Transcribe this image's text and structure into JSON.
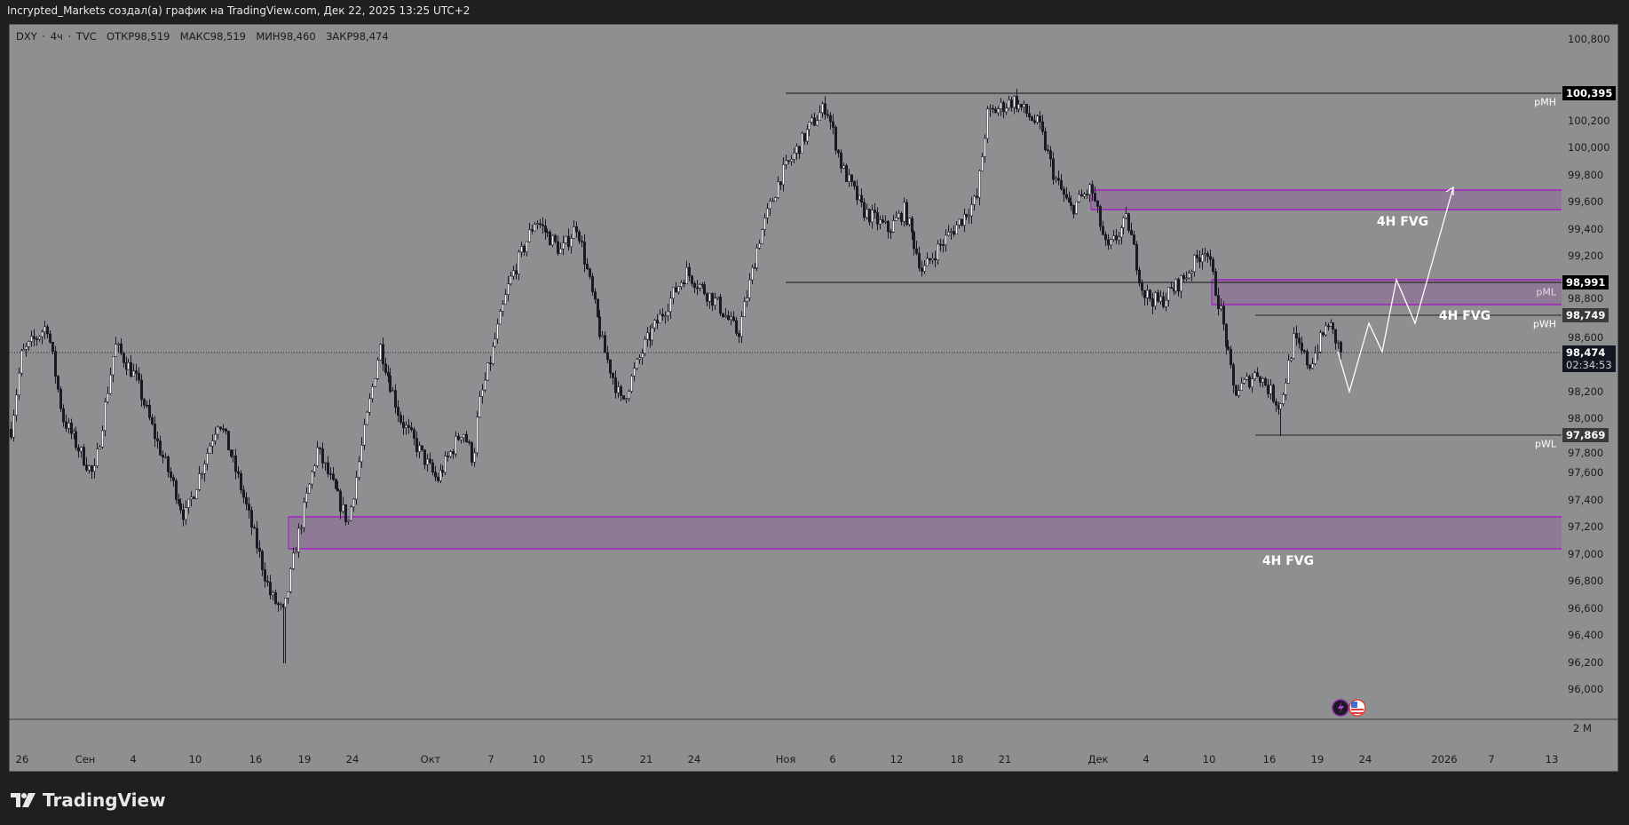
{
  "header": {
    "attribution": "Incrypted_Markets создал(а) график на TradingView.com, Дек 22, 2025 13:25 UTC+2"
  },
  "legend": {
    "symbol": "DXY · 4ч · TVC",
    "open": "ОТКР98,519",
    "high": "МАКС98,519",
    "low": "МИН98,460",
    "close": "ЗАКР98,474"
  },
  "price_axis": [
    "100,800",
    "100,200",
    "100,000",
    "99,800",
    "99,600",
    "99,400",
    "99,200",
    "98,800",
    "98,600",
    "98,200",
    "98,000",
    "97,800",
    "97,600",
    "97,400",
    "97,200",
    "97,000",
    "96,800",
    "96,600",
    "96,400",
    "96,200",
    "96,000"
  ],
  "volume_scale": "2 M",
  "time_axis": [
    "26",
    "Сен",
    "4",
    "10",
    "16",
    "19",
    "24",
    "Окт",
    "7",
    "10",
    "15",
    "21",
    "24",
    "Ноя",
    "6",
    "12",
    "18",
    "21",
    "Дек",
    "4",
    "10",
    "16",
    "19",
    "24",
    "2026",
    "7",
    "13"
  ],
  "levels": {
    "pMH": {
      "label": "pMH",
      "value": "100,395"
    },
    "pML": {
      "label": "pML",
      "value": "98,991"
    },
    "pWH": {
      "label": "pWH",
      "value": "98,749"
    },
    "pWL": {
      "label": "pWL",
      "value": "97,869"
    }
  },
  "current": {
    "price": "98,474",
    "countdown": "02:34:53"
  },
  "fvg_labels": [
    "4H FVG",
    "4H FVG",
    "4H FVG"
  ],
  "colors": {
    "background": "#8e8f91",
    "fvg_fill": "#8e7a94",
    "fvg_border": "#9c27b0",
    "candle_up": "#ffffff",
    "candle_down": "#1b1b26",
    "projection": "#ffffff"
  },
  "event_icons": [
    "lightning-icon",
    "us-flag-icon"
  ],
  "brand": "TradingView"
}
